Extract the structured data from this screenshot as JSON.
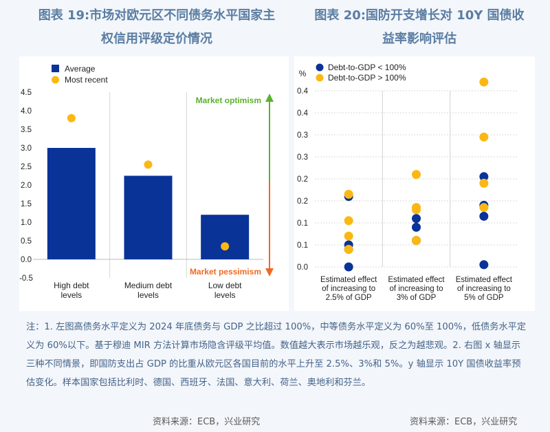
{
  "titles": {
    "left_line1": "图表 19:市场对欧元区不同债务水平国家主",
    "left_line2": "权信用评级定价情况",
    "right_line1": "图表 20:国防开支增长对 10Y 国债收",
    "right_line2": "益率影响评估"
  },
  "note": "注：1. 左图高债务水平定义为 2024 年底债务与 GDP 之比超过 100%，中等债务水平定义为 60%至 100%，低债务水平定义为 60%以下。基于穆迪 MIR 方法计算市场隐含评级平均值。数值越大表示市场越乐观，反之为越悲观。2. 右图 x 轴显示三种不同情景，即国防支出占 GDP 的比重从欧元区各国目前的水平上升至 2.5%、3%和 5%。y 轴显示 10Y 国债收益率预估变化。样本国家包括比利时、德国、西班牙、法国、意大利、荷兰、奥地利和芬兰。",
  "source_left": "资料来源：ECB，兴业研究",
  "source_right": "资料来源：ECB，兴业研究",
  "colors": {
    "navy": "#0a3398",
    "gold": "#fbb813",
    "green": "#5ab22e",
    "orange": "#ee6a24"
  },
  "chart_data": [
    {
      "type": "bar",
      "categories": [
        [
          "High debt",
          "levels"
        ],
        [
          "Medium debt",
          "levels"
        ],
        [
          "Low debt",
          "levels"
        ]
      ],
      "series": [
        {
          "name": "Average",
          "values": [
            3.0,
            2.25,
            1.2
          ]
        },
        {
          "name": "Most recent",
          "values": [
            3.8,
            2.55,
            0.35
          ]
        }
      ],
      "ylim": [
        -0.5,
        4.5
      ],
      "yticks": [
        "-0.5",
        "0.0",
        "0.5",
        "1.0",
        "1.5",
        "2.0",
        "2.5",
        "3.0",
        "3.5",
        "4.0",
        "4.5"
      ],
      "annotations": {
        "top": "Market optimism",
        "bottom": "Market pessimism"
      },
      "legend_position": "top-left"
    },
    {
      "type": "scatter",
      "ylabel": "%",
      "categories": [
        [
          "Estimated effect",
          "of increasing to",
          "2.5% of GDP"
        ],
        [
          "Estimated effect",
          "of increasing to",
          "3% of GDP"
        ],
        [
          "Estimated effect",
          "of increasing to",
          "5% of GDP"
        ]
      ],
      "series": [
        {
          "name": "Debt-to-GDP < 100%",
          "points": [
            [
              0,
              0.0
            ],
            [
              0,
              0.04
            ],
            [
              0,
              0.05
            ],
            [
              0,
              0.16
            ],
            [
              1,
              0.06
            ],
            [
              1,
              0.09
            ],
            [
              1,
              0.11
            ],
            [
              2,
              0.005
            ],
            [
              2,
              0.115
            ],
            [
              2,
              0.14
            ],
            [
              2,
              0.205
            ]
          ]
        },
        {
          "name": "Debt-to-GDP > 100%",
          "points": [
            [
              0,
              0.04
            ],
            [
              0,
              0.07
            ],
            [
              0,
              0.105
            ],
            [
              0,
              0.165
            ],
            [
              1,
              0.06
            ],
            [
              1,
              0.135
            ],
            [
              1,
              0.13
            ],
            [
              1,
              0.21
            ],
            [
              2,
              0.135
            ],
            [
              2,
              0.19
            ],
            [
              2,
              0.295
            ],
            [
              2,
              0.42
            ]
          ]
        }
      ],
      "ylim": [
        0,
        0.4
      ],
      "yticks": [
        "0.0",
        "0.1",
        "0.1",
        "0.2",
        "0.2",
        "0.3",
        "0.3",
        "0.4",
        "0.4"
      ],
      "ytick_values": [
        0,
        0.05,
        0.1,
        0.15,
        0.2,
        0.25,
        0.3,
        0.35,
        0.4
      ],
      "legend_position": "top-left"
    }
  ]
}
